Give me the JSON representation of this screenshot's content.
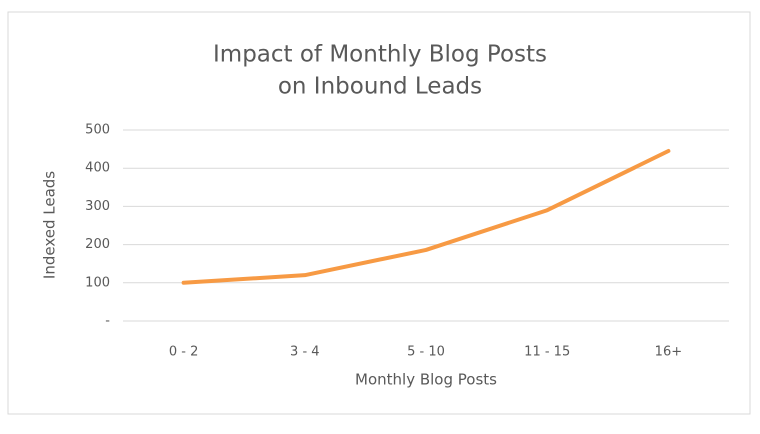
{
  "chart_data": {
    "type": "line",
    "title": [
      "Impact of Monthly Blog Posts",
      "on Inbound Leads"
    ],
    "x_label": "Monthly Blog Posts",
    "y_label": "Indexed Leads",
    "categories": [
      "0 - 2",
      "3 - 4",
      "5 - 10",
      "11 - 15",
      "16+"
    ],
    "series": [
      {
        "name": "Indexed Leads",
        "color": "#f79a44",
        "values": [
          100,
          120,
          186,
          290,
          445
        ]
      }
    ],
    "ylim": [
      0,
      500
    ],
    "yticks": [
      {
        "value": 0,
        "label": "-"
      },
      100,
      200,
      300,
      400,
      500
    ],
    "grid": true
  }
}
